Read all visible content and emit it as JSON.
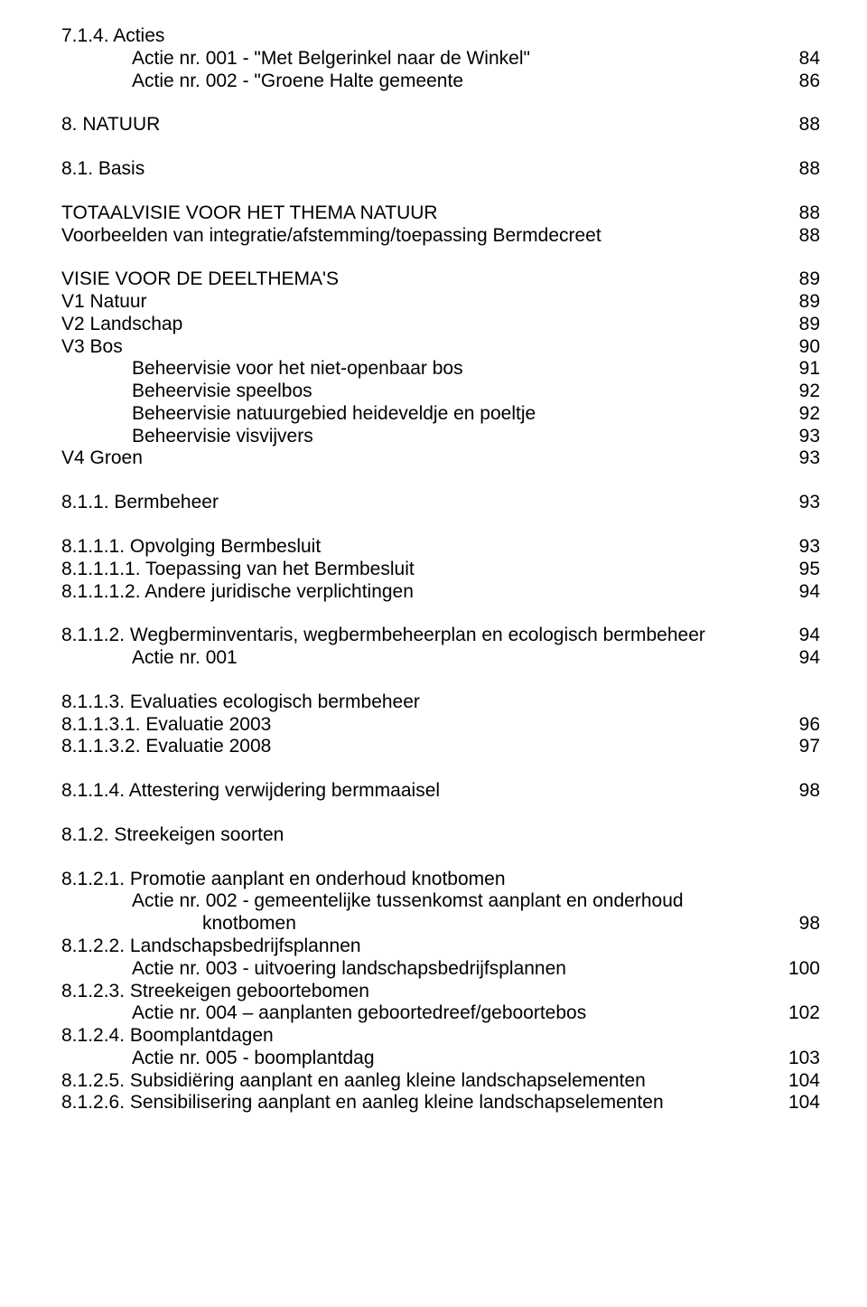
{
  "lines": [
    {
      "label": "7.1.4. Acties",
      "page": "",
      "indent": 0,
      "mt": 0
    },
    {
      "label": "Actie nr. 001 - \"Met Belgerinkel naar de Winkel\"",
      "page": "84",
      "indent": 1,
      "mt": 0
    },
    {
      "label": "Actie nr. 002 - \"Groene Halte gemeente",
      "page": "86",
      "indent": 1,
      "mt": 0
    },
    {
      "label": "8. NATUUR",
      "page": "88",
      "indent": 0,
      "mt": 24
    },
    {
      "label": "8.1. Basis",
      "page": "88",
      "indent": 0,
      "mt": 24
    },
    {
      "label": "TOTAALVISIE VOOR HET THEMA NATUUR",
      "page": "88",
      "indent": 0,
      "mt": 24
    },
    {
      "label": "Voorbeelden van integratie/afstemming/toepassing Bermdecreet",
      "page": "88",
      "indent": 0,
      "mt": 0
    },
    {
      "label": "VISIE VOOR DE DEELTHEMA'S",
      "page": "89",
      "indent": 0,
      "mt": 24
    },
    {
      "label": "V1 Natuur",
      "page": "89",
      "indent": 0,
      "mt": 0
    },
    {
      "label": "V2 Landschap",
      "page": "89",
      "indent": 0,
      "mt": 0
    },
    {
      "label": "V3 Bos",
      "page": "90",
      "indent": 0,
      "mt": 0
    },
    {
      "label": "Beheervisie voor het niet-openbaar bos",
      "page": "91",
      "indent": 1,
      "mt": 0
    },
    {
      "label": "Beheervisie speelbos",
      "page": "92",
      "indent": 1,
      "mt": 0
    },
    {
      "label": "Beheervisie natuurgebied heideveldje en poeltje",
      "page": "92",
      "indent": 1,
      "mt": 0
    },
    {
      "label": "Beheervisie visvijvers",
      "page": "93",
      "indent": 1,
      "mt": 0
    },
    {
      "label": "V4 Groen",
      "page": "93",
      "indent": 0,
      "mt": 0
    },
    {
      "label": "8.1.1. Bermbeheer",
      "page": "93",
      "indent": 0,
      "mt": 24
    },
    {
      "label": "8.1.1.1. Opvolging Bermbesluit",
      "page": "93",
      "indent": 0,
      "mt": 24
    },
    {
      "label": "8.1.1.1.1. Toepassing van het Bermbesluit",
      "page": "95",
      "indent": 0,
      "mt": 0
    },
    {
      "label": "8.1.1.1.2. Andere juridische verplichtingen",
      "page": "94",
      "indent": 0,
      "mt": 0
    },
    {
      "label": "8.1.1.2. Wegberminventaris, wegbermbeheerplan en ecologisch bermbeheer",
      "page": "94",
      "indent": 0,
      "mt": 24
    },
    {
      "label": "Actie nr. 001",
      "page": "94",
      "indent": 1,
      "mt": 0
    },
    {
      "label": "8.1.1.3. Evaluaties ecologisch bermbeheer",
      "page": "",
      "indent": 0,
      "mt": 24
    },
    {
      "label": "8.1.1.3.1. Evaluatie 2003",
      "page": "96",
      "indent": 0,
      "mt": 0
    },
    {
      "label": "8.1.1.3.2. Evaluatie 2008",
      "page": "97",
      "indent": 0,
      "mt": 0
    },
    {
      "label": "8.1.1.4. Attestering verwijdering bermmaaisel",
      "page": "98",
      "indent": 0,
      "mt": 24
    },
    {
      "label": "8.1.2. Streekeigen soorten",
      "page": "",
      "indent": 0,
      "mt": 24
    },
    {
      "label": "8.1.2.1. Promotie aanplant en onderhoud knotbomen",
      "page": "",
      "indent": 0,
      "mt": 24
    },
    {
      "label": "Actie nr. 002  - gemeentelijke tussenkomst aanplant en onderhoud",
      "page": "",
      "indent": 1,
      "mt": 0
    },
    {
      "label": "knotbomen",
      "page": "98",
      "indent": 2,
      "mt": 0
    },
    {
      "label": "8.1.2.2. Landschapsbedrijfsplannen",
      "page": "",
      "indent": 0,
      "mt": 0
    },
    {
      "label": "Actie nr. 003 - uitvoering landschapsbedrijfsplannen",
      "page": "100",
      "indent": 1,
      "mt": 0
    },
    {
      "label": "8.1.2.3. Streekeigen geboortebomen",
      "page": "",
      "indent": 0,
      "mt": 0
    },
    {
      "label": "Actie nr. 004 – aanplanten geboortedreef/geboortebos",
      "page": "102",
      "indent": 1,
      "mt": 0
    },
    {
      "label": "8.1.2.4. Boomplantdagen",
      "page": "",
      "indent": 0,
      "mt": 0
    },
    {
      "label": "Actie nr. 005 - boomplantdag",
      "page": "103",
      "indent": 1,
      "mt": 0
    },
    {
      "label": "8.1.2.5. Subsidiëring aanplant en aanleg kleine landschapselementen",
      "page": "104",
      "indent": 0,
      "mt": 0
    },
    {
      "label": "8.1.2.6. Sensibilisering aanplant en aanleg kleine landschapselementen",
      "page": "104",
      "indent": 0,
      "mt": 0
    }
  ]
}
